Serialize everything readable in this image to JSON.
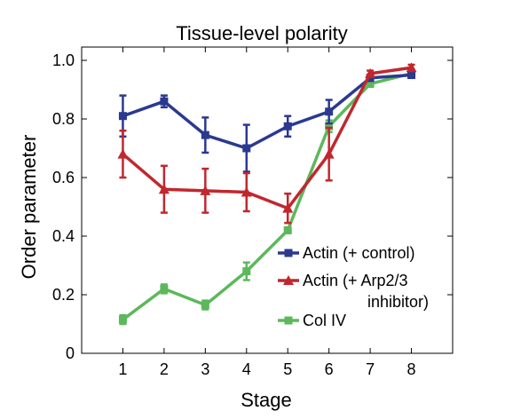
{
  "chart_data": {
    "type": "line",
    "title": "Tissue-level polarity",
    "xlabel": "Stage",
    "ylabel": "Order parameter",
    "x": [
      1,
      2,
      3,
      4,
      5,
      6,
      7,
      8
    ],
    "xlim": [
      0,
      9
    ],
    "ylim": [
      0,
      1.0
    ],
    "x_ticks": [
      "1",
      "2",
      "3",
      "4",
      "5",
      "6",
      "7",
      "8"
    ],
    "y_ticks": [
      "0",
      "0.2",
      "0.4",
      "0.6",
      "0.8",
      "1.0"
    ],
    "y_tick_values": [
      0,
      0.2,
      0.4,
      0.6,
      0.8,
      1.0
    ],
    "grid": false,
    "legend_position": "lower-right",
    "series": [
      {
        "name": "Actin (+ control)",
        "color": "#2b3990",
        "marker": "square",
        "values": [
          0.81,
          0.86,
          0.745,
          0.7,
          0.775,
          0.825,
          0.94,
          0.95
        ],
        "errors": [
          0.07,
          0.02,
          0.06,
          0.08,
          0.035,
          0.04,
          0.01,
          0.01
        ]
      },
      {
        "name": "Actin (+ Arp2/3 inhibitor)",
        "color": "#c1272d",
        "marker": "triangle",
        "values": [
          0.68,
          0.56,
          0.555,
          0.55,
          0.495,
          0.68,
          0.955,
          0.975
        ],
        "errors": [
          0.08,
          0.08,
          0.075,
          0.065,
          0.05,
          0.09,
          0.01,
          0.01
        ]
      },
      {
        "name": "Col IV",
        "color": "#5cb85c",
        "marker": "square",
        "values": [
          0.115,
          0.22,
          0.165,
          0.28,
          0.42,
          0.775,
          0.92,
          0.955
        ],
        "errors": [
          0.015,
          0.015,
          0.015,
          0.03,
          0.01,
          0.02,
          0.01,
          0.01
        ]
      }
    ],
    "legend": [
      {
        "line1": "Actin (+ control)"
      },
      {
        "line1": "Actin (+ Arp2/3",
        "line2": "inhibitor)"
      },
      {
        "line1": "Col IV"
      }
    ]
  }
}
